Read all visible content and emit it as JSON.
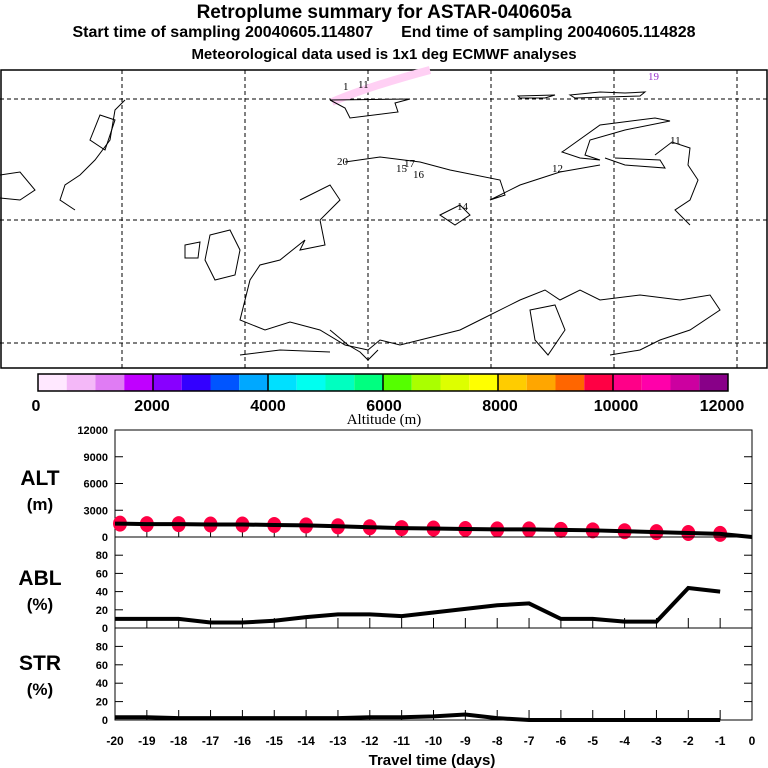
{
  "header": {
    "title": "Retroplume summary for ASTAR-040605a",
    "start": "Start time of sampling 20040605.114807",
    "end": "End time of sampling 20040605.114828",
    "met": "Meteorological data used is 1x1 deg ECMWF analyses"
  },
  "map": {
    "labels": [
      "1",
      "11",
      "19",
      "20",
      "17",
      "15",
      "16",
      "14",
      "12",
      "11"
    ]
  },
  "colorbar": {
    "title": "Altitude (m)",
    "ticks": [
      "0",
      "2000",
      "4000",
      "6000",
      "8000",
      "10000",
      "12000"
    ],
    "colors": [
      "#ffe8ff",
      "#f4b8f8",
      "#e07cf4",
      "#c000ff",
      "#8800ff",
      "#3300ff",
      "#0055ff",
      "#00a8ff",
      "#00e0ff",
      "#00fff0",
      "#00ffc0",
      "#00ff80",
      "#55ff00",
      "#aaff00",
      "#ddff00",
      "#ffff00",
      "#ffcc00",
      "#ffa600",
      "#ff6600",
      "#ff0044",
      "#ff0088",
      "#ff00aa",
      "#cc00a0",
      "#880088"
    ]
  },
  "chart_data": [
    {
      "type": "line",
      "panel": "ALT",
      "ylabel": [
        "ALT",
        "(m)"
      ],
      "yticks": [
        "12000",
        "9000",
        "6000",
        "3000",
        "0"
      ],
      "ylim": [
        0,
        12000
      ],
      "x": [
        -20,
        -19,
        -18,
        -17,
        -16,
        -15,
        -14,
        -13,
        -12,
        -11,
        -10,
        -9,
        -8,
        -7,
        -6,
        -5,
        -4,
        -3,
        -2,
        -1,
        0
      ],
      "values": [
        1500,
        1450,
        1450,
        1400,
        1400,
        1350,
        1300,
        1200,
        1100,
        1000,
        950,
        900,
        850,
        850,
        800,
        750,
        650,
        550,
        450,
        350,
        0
      ],
      "marker_color": "#ff0044"
    },
    {
      "type": "line",
      "panel": "ABL",
      "ylabel": [
        "ABL",
        "(%)"
      ],
      "yticks": [
        "80",
        "60",
        "40",
        "20",
        "0"
      ],
      "ylim": [
        0,
        100
      ],
      "x": [
        -20,
        -19,
        -18,
        -17,
        -16,
        -15,
        -14,
        -13,
        -12,
        -11,
        -10,
        -9,
        -8,
        -7,
        -6,
        -5,
        -4,
        -3,
        -2,
        -1
      ],
      "values": [
        10,
        10,
        10,
        6,
        6,
        8,
        12,
        15,
        15,
        13,
        17,
        21,
        25,
        27,
        10,
        10,
        7,
        7,
        44,
        40
      ]
    },
    {
      "type": "line",
      "panel": "STR",
      "ylabel": [
        "STR",
        "(%)"
      ],
      "yticks": [
        "80",
        "60",
        "40",
        "20",
        "0"
      ],
      "ylim": [
        0,
        100
      ],
      "x": [
        -20,
        -19,
        -18,
        -17,
        -16,
        -15,
        -14,
        -13,
        -12,
        -11,
        -10,
        -9,
        -8,
        -7,
        -6,
        -5,
        -4,
        -3,
        -2,
        -1
      ],
      "values": [
        3,
        3,
        2,
        2,
        2,
        2,
        2,
        2,
        3,
        3,
        4,
        6,
        2,
        0,
        0,
        0,
        0,
        0,
        0,
        0
      ]
    }
  ],
  "xaxis": {
    "title": "Travel time (days)",
    "ticks": [
      "-20",
      "-19",
      "-18",
      "-17",
      "-16",
      "-15",
      "-14",
      "-13",
      "-12",
      "-11",
      "-10",
      "-9",
      "-8",
      "-7",
      "-6",
      "-5",
      "-4",
      "-3",
      "-2",
      "-1",
      "0"
    ]
  }
}
